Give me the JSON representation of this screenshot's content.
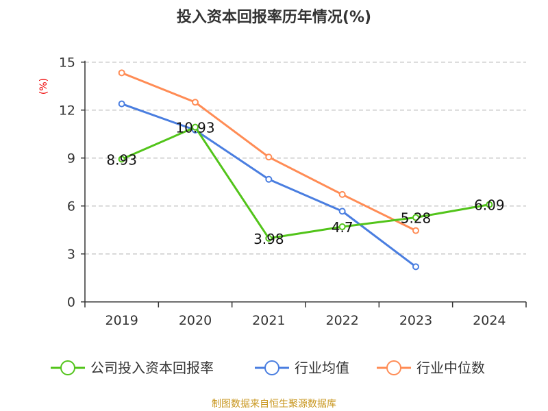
{
  "chart_data": {
    "type": "line",
    "title": "投入资本回报率历年情况(%)",
    "ylabel": "(%)",
    "categories": [
      "2019",
      "2020",
      "2021",
      "2022",
      "2023",
      "2024"
    ],
    "ylim": [
      0,
      15
    ],
    "yticks": [
      0,
      3,
      6,
      9,
      12,
      15
    ],
    "grid": true,
    "legend_position": "bottom",
    "series": [
      {
        "name": "公司投入资本回报率",
        "color": "#52c41a",
        "values": [
          8.93,
          10.93,
          3.98,
          4.7,
          5.28,
          6.09
        ],
        "labels": [
          "8.93",
          "10.93",
          "3.98",
          "4.7",
          "5.28",
          "6.09"
        ]
      },
      {
        "name": "行业均值",
        "color": "#4a7ee0",
        "values": [
          12.39,
          10.75,
          7.67,
          5.67,
          2.2,
          null
        ]
      },
      {
        "name": "行业中位数",
        "color": "#ff8c55",
        "values": [
          14.33,
          12.49,
          9.06,
          6.72,
          4.46,
          null
        ]
      }
    ],
    "source": "制图数据来自恒生聚源数据库"
  }
}
